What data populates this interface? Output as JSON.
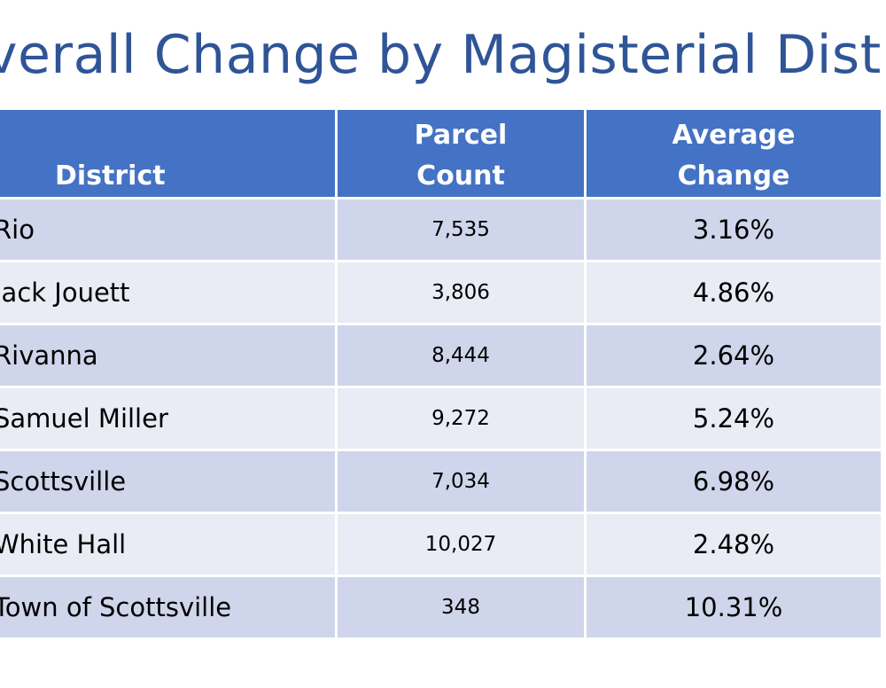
{
  "title": "verall Change by Magisterial Distric",
  "table": {
    "headers": {
      "district": "District",
      "parcel_count": [
        "Parcel",
        "Count"
      ],
      "average_change": [
        "Average",
        "Change"
      ]
    },
    "rows": [
      {
        "district": "Rio",
        "parcel_count": "7,535",
        "average_change": "3.16%"
      },
      {
        "district": "Jack Jouett",
        "parcel_count": "3,806",
        "average_change": "4.86%"
      },
      {
        "district": "Rivanna",
        "parcel_count": "8,444",
        "average_change": "2.64%"
      },
      {
        "district": "Samuel Miller",
        "parcel_count": "9,272",
        "average_change": "5.24%"
      },
      {
        "district": "Scottsville",
        "parcel_count": "7,034",
        "average_change": "6.98%"
      },
      {
        "district": "White Hall",
        "parcel_count": "10,027",
        "average_change": "2.48%"
      },
      {
        "district": "Town of Scottsville",
        "parcel_count": "348",
        "average_change": "10.31%"
      }
    ]
  },
  "colors": {
    "title": "#2f5597",
    "header_bg": "#4472c4",
    "row_dark": "#cfd5ea",
    "row_light": "#e9ebf5"
  }
}
